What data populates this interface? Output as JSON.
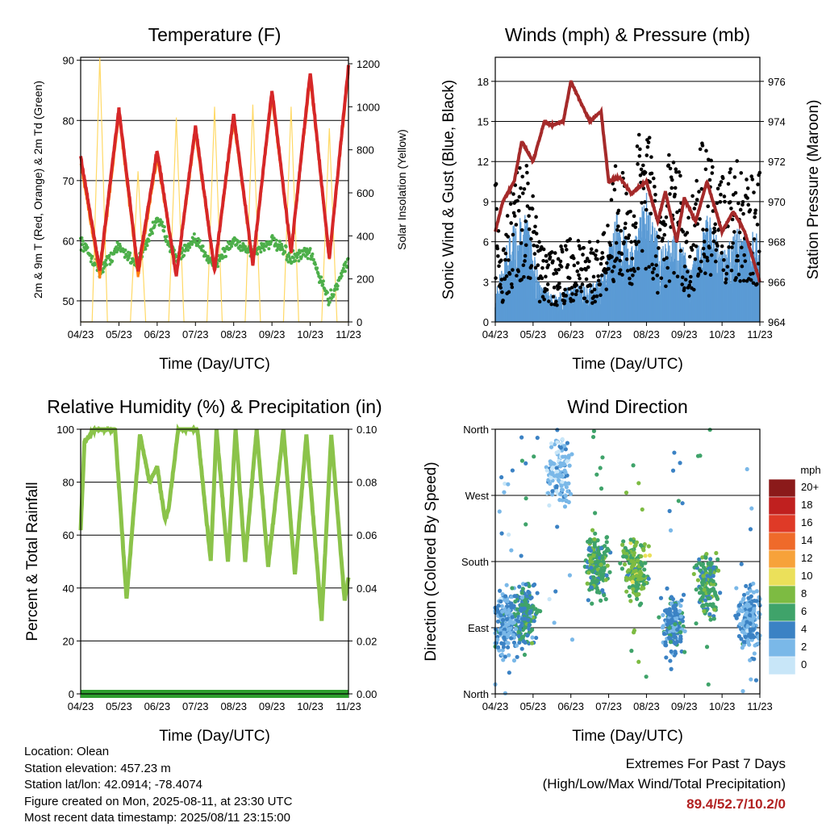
{
  "chart_data": [
    {
      "type": "line",
      "title": "Temperature (F)",
      "xlabel": "Time (Day/UTC)",
      "ylabel": "2m & 9m T (Red, Orange) & 2m Td (Green)",
      "y2label": "Solar Insolation (Yellow)",
      "x_ticks": [
        "04/23",
        "05/23",
        "06/23",
        "07/23",
        "08/23",
        "09/23",
        "10/23",
        "11/23"
      ],
      "ylim": [
        46.5,
        90.5
      ],
      "y_ticks": [
        50,
        60,
        70,
        80,
        90
      ],
      "y2lim": [
        0,
        1230
      ],
      "y2_ticks": [
        0,
        200,
        400,
        600,
        800,
        1000,
        1200
      ],
      "series": [
        {
          "name": "2m T",
          "color": "#d62728",
          "x": [
            0,
            0.5,
            1,
            1.5,
            2,
            2.5,
            3,
            3.5,
            4,
            4.5,
            5,
            5.5,
            6,
            6.5,
            7
          ],
          "values": [
            74,
            55,
            82,
            55,
            75,
            54,
            79,
            55,
            81,
            56,
            85,
            58,
            88,
            57,
            89
          ]
        },
        {
          "name": "9m T",
          "color": "#ff7f0e",
          "x": [
            0,
            0.5,
            1,
            1.5,
            2,
            2.5,
            3,
            3.5,
            4,
            4.5,
            5,
            5.5,
            6,
            6.5,
            7
          ],
          "values": [
            73,
            54,
            81,
            54,
            74,
            54,
            78,
            55,
            80,
            56,
            84,
            58,
            87,
            57,
            88
          ]
        },
        {
          "name": "2m Td",
          "color": "#4daf4a",
          "x": [
            0,
            0.5,
            1,
            1.5,
            2,
            2.5,
            3,
            3.5,
            4,
            4.5,
            5,
            5.5,
            6,
            6.5,
            7
          ],
          "values": [
            60,
            55,
            59,
            56,
            64,
            57,
            60,
            56,
            60,
            58,
            60,
            57,
            58,
            50,
            57
          ]
        },
        {
          "name": "Solar Insolation",
          "color": "#ffd966",
          "x": [
            0,
            0.3,
            0.5,
            0.7,
            1,
            1.3,
            1.5,
            1.7,
            2,
            2.3,
            2.5,
            2.7,
            3,
            3.3,
            3.5,
            3.7,
            4,
            4.3,
            4.5,
            4.7,
            5,
            5.3,
            5.5,
            5.7,
            6,
            6.3,
            6.5,
            6.7,
            7
          ],
          "values": [
            0,
            0,
            1230,
            0,
            0,
            0,
            700,
            0,
            0,
            0,
            950,
            0,
            0,
            0,
            1000,
            0,
            0,
            0,
            1010,
            0,
            0,
            0,
            1000,
            0,
            0,
            0,
            900,
            0,
            0
          ]
        }
      ]
    },
    {
      "type": "scatter",
      "title": "Winds (mph) & Pressure (mb)",
      "xlabel": "Time (Day/UTC)",
      "ylabel": "Sonic Wind & Gust (Blue, Black)",
      "y2label": "Station Pressure (Maroon)",
      "x_ticks": [
        "04/23",
        "05/23",
        "06/23",
        "07/23",
        "08/23",
        "09/23",
        "10/23",
        "11/23"
      ],
      "ylim": [
        0,
        19.8
      ],
      "y_ticks": [
        0,
        3,
        6,
        9,
        12,
        15,
        18
      ],
      "y2lim": [
        964,
        977.2
      ],
      "y2_ticks": [
        964,
        966,
        968,
        970,
        972,
        974,
        976
      ],
      "series": [
        {
          "name": "Pressure",
          "color": "#a52a2a",
          "x": [
            0,
            0.2,
            0.5,
            0.7,
            1,
            1.3,
            1.5,
            1.8,
            2,
            2.5,
            2.8,
            3,
            3.3,
            3.6,
            4,
            4.3,
            4.5,
            4.8,
            5,
            5.3,
            5.6,
            6,
            6.3,
            6.6,
            7
          ],
          "values": [
            968.5,
            970,
            971,
            973,
            972,
            974,
            973.8,
            974,
            976,
            974,
            974.5,
            971,
            971.2,
            970.4,
            971,
            969,
            970.5,
            968,
            970.2,
            969,
            971,
            968.5,
            969.5,
            968.5,
            966
          ]
        },
        {
          "name": "Gust",
          "color": "#000000",
          "x": [
            0.1,
            0.5,
            0.8,
            1.2,
            1.6,
            2,
            2.4,
            2.8,
            3.2,
            3.6,
            3.95,
            4.3,
            4.7,
            5.1,
            5.5,
            5.9,
            6.3,
            6.7
          ],
          "values": [
            3.5,
            9,
            10,
            4.5,
            4,
            5,
            4.5,
            5,
            10,
            7,
            14,
            6,
            11,
            6,
            11,
            8,
            10,
            9
          ]
        },
        {
          "name": "Sonic Wind",
          "color": "#5b9bd5",
          "x": [
            0,
            0.4,
            0.8,
            1.2,
            1.6,
            2,
            2.4,
            2.8,
            3.2,
            3.6,
            4,
            4.4,
            4.8,
            5.2,
            5.6,
            6,
            6.4,
            6.8
          ],
          "values": [
            1.5,
            5,
            6,
            2,
            1.5,
            2,
            2,
            2.5,
            6,
            4,
            7,
            4,
            5,
            3,
            6,
            4,
            5,
            5
          ]
        }
      ]
    },
    {
      "type": "line",
      "title": "Relative Humidity (%) & Precipitation (in)",
      "xlabel": "Time (Day/UTC)",
      "ylabel": "Percent & Total Rainfall",
      "x_ticks": [
        "04/23",
        "05/23",
        "06/23",
        "07/23",
        "08/23",
        "09/23",
        "10/23",
        "11/23"
      ],
      "ylim": [
        0,
        100
      ],
      "y_ticks": [
        0,
        20,
        40,
        60,
        80,
        100
      ],
      "y2lim": [
        0,
        0.1
      ],
      "y2_ticks": [
        "0.00",
        "0.02",
        "0.04",
        "0.06",
        "0.08",
        "0.10"
      ],
      "series": [
        {
          "name": "Relative Humidity",
          "color": "#8bc34a",
          "x": [
            0,
            0.1,
            0.35,
            0.9,
            1.2,
            1.55,
            1.8,
            2,
            2.2,
            2.3,
            2.55,
            3.05,
            3.4,
            3.55,
            3.85,
            4.05,
            4.3,
            4.6,
            4.9,
            5.3,
            5.6,
            5.9,
            6.3,
            6.55,
            6.9,
            7
          ],
          "values": [
            62,
            95,
            100,
            100,
            36,
            98,
            80,
            86,
            66,
            70,
            100,
            100,
            50,
            100,
            50,
            100,
            50,
            100,
            48,
            100,
            45,
            98,
            28,
            98,
            35,
            44
          ]
        },
        {
          "name": "Total Precipitation",
          "color": "#2e9e2e",
          "x": [
            0,
            7
          ],
          "values": [
            0,
            0
          ]
        }
      ]
    },
    {
      "type": "scatter",
      "title": "Wind Direction",
      "xlabel": "Time (Day/UTC)",
      "ylabel": "Direction (Colored By Speed)",
      "x_ticks": [
        "04/23",
        "05/23",
        "06/23",
        "07/23",
        "08/23",
        "09/23",
        "10/23",
        "11/23"
      ],
      "y_ticks": [
        "North",
        "East",
        "South",
        "West",
        "North"
      ],
      "ylim": [
        0,
        360
      ],
      "legend_title": "mph",
      "legend_labels": [
        "20+",
        "18",
        "16",
        "14",
        "12",
        "10",
        "8",
        "6",
        "4",
        "2",
        "0"
      ],
      "legend_colors": [
        "#8b1a1a",
        "#c0201f",
        "#df3a27",
        "#ef6a2a",
        "#f7a23a",
        "#ebe05a",
        "#7dbb42",
        "#3fa36a",
        "#3b82c4",
        "#7ab8e8",
        "#c8e6f8"
      ],
      "clusters": [
        {
          "x": 0.3,
          "dir": 95,
          "speed": 3
        },
        {
          "x": 0.8,
          "dir": 110,
          "speed": 5
        },
        {
          "x": 1.7,
          "dir": 300,
          "speed": 2
        },
        {
          "x": 2.7,
          "dir": 175,
          "speed": 6
        },
        {
          "x": 3.7,
          "dir": 170,
          "speed": 7
        },
        {
          "x": 4.7,
          "dir": 95,
          "speed": 4
        },
        {
          "x": 5.6,
          "dir": 150,
          "speed": 6
        },
        {
          "x": 6.7,
          "dir": 100,
          "speed": 3
        }
      ]
    }
  ],
  "info": {
    "location": "Location: Olean",
    "elevation": "Station elevation: 457.23 m",
    "latlon": "Station lat/lon: 42.0914; -78.4074",
    "created": "Figure created on Mon, 2025-08-11, at 23:30 UTC",
    "recent": "Most recent data timestamp: 2025/08/11 23:15:00"
  },
  "extremes": {
    "line1": "Extremes For Past 7 Days",
    "line2": "(High/Low/Max Wind/Total Precipitation)",
    "values": "89.4/52.7/10.2/0"
  }
}
